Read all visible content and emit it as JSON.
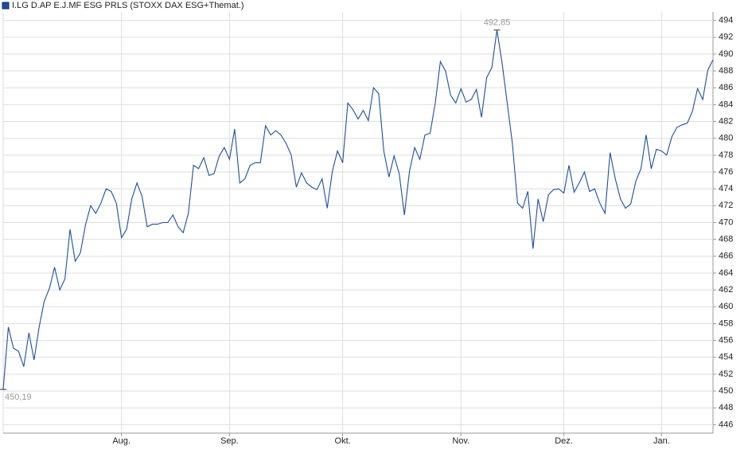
{
  "chart_data": {
    "type": "line",
    "categories": [
      null,
      null,
      null,
      null,
      null,
      null,
      null,
      null,
      null,
      null,
      null,
      null,
      null,
      null,
      null,
      null,
      null,
      null,
      null,
      null,
      null,
      null,
      null,
      "Aug.",
      null,
      null,
      null,
      null,
      null,
      null,
      null,
      null,
      null,
      null,
      null,
      null,
      null,
      null,
      null,
      null,
      null,
      null,
      null,
      null,
      "Sep.",
      null,
      null,
      null,
      null,
      null,
      null,
      null,
      null,
      null,
      null,
      null,
      null,
      null,
      null,
      null,
      null,
      null,
      null,
      null,
      null,
      null,
      "Okt.",
      null,
      null,
      null,
      null,
      null,
      null,
      null,
      null,
      null,
      null,
      null,
      null,
      null,
      null,
      null,
      null,
      null,
      null,
      null,
      null,
      null,
      null,
      "Nov.",
      null,
      null,
      null,
      null,
      null,
      null,
      null,
      null,
      null,
      null,
      null,
      null,
      null,
      null,
      null,
      null,
      null,
      null,
      null,
      "Dez.",
      null,
      null,
      null,
      null,
      null,
      null,
      null,
      null,
      null,
      null,
      null,
      null,
      null,
      null,
      null,
      null,
      null,
      null,
      "Jan.",
      null,
      null,
      null,
      null,
      null,
      null,
      null,
      null,
      null,
      null
    ],
    "series": [
      {
        "name": "I.LG D.AP E.J.MF ESG PRLS (STOXX DAX ESG+Themat.)",
        "color": "#1d4f9e",
        "values": [
          450.19,
          457.6,
          455.1,
          454.7,
          452.9,
          456.9,
          453.7,
          457.6,
          460.7,
          462.2,
          464.7,
          462.0,
          463.3,
          469.2,
          465.4,
          466.4,
          469.7,
          472.0,
          471.1,
          472.3,
          474.0,
          473.7,
          472.3,
          468.2,
          469.2,
          472.8,
          474.7,
          473.1,
          469.5,
          469.8,
          469.8,
          470.0,
          470.0,
          470.9,
          469.5,
          468.8,
          471.1,
          476.8,
          476.4,
          477.7,
          475.6,
          475.8,
          477.9,
          478.9,
          477.5,
          481.1,
          474.7,
          475.2,
          476.8,
          477.1,
          477.1,
          481.5,
          480.4,
          480.9,
          480.4,
          479.4,
          478.0,
          474.2,
          475.9,
          474.7,
          474.2,
          473.9,
          475.2,
          471.7,
          476.1,
          478.5,
          477.1,
          484.2,
          483.4,
          482.3,
          483.3,
          482.1,
          486.0,
          485.3,
          478.5,
          475.4,
          477.9,
          475.8,
          470.9,
          476.1,
          478.9,
          477.5,
          480.4,
          480.6,
          484.2,
          489.1,
          488.0,
          485.1,
          484.2,
          485.9,
          484.3,
          484.6,
          485.8,
          482.5,
          487.2,
          488.4,
          492.85,
          488.9,
          484.2,
          479.4,
          472.3,
          471.7,
          473.7,
          466.9,
          472.8,
          470.1,
          473.3,
          473.9,
          474.0,
          473.5,
          476.8,
          473.6,
          474.7,
          476.0,
          473.7,
          474.0,
          472.3,
          471.1,
          478.3,
          475.2,
          472.8,
          471.7,
          472.2,
          474.9,
          476.4,
          480.4,
          476.4,
          478.7,
          478.5,
          478.0,
          480.2,
          481.3,
          481.6,
          481.8,
          483.2,
          485.9,
          484.6,
          488.1,
          489.3
        ],
        "value_labels": [
          "450,19",
          null,
          null,
          null,
          null,
          null,
          null,
          null,
          null,
          null,
          null,
          null,
          null,
          null,
          null,
          null,
          null,
          null,
          null,
          null,
          null,
          null,
          null,
          null,
          null,
          null,
          null,
          null,
          null,
          null,
          null,
          null,
          null,
          null,
          null,
          null,
          null,
          null,
          null,
          null,
          null,
          null,
          null,
          null,
          null,
          null,
          null,
          null,
          null,
          null,
          null,
          null,
          null,
          null,
          null,
          null,
          null,
          null,
          null,
          null,
          null,
          null,
          null,
          null,
          null,
          null,
          null,
          null,
          null,
          null,
          null,
          null,
          null,
          null,
          null,
          null,
          null,
          null,
          null,
          null,
          null,
          null,
          null,
          null,
          null,
          null,
          null,
          null,
          null,
          null,
          null,
          null,
          null,
          null,
          null,
          null,
          "492,85",
          null,
          null,
          null,
          null,
          null,
          null,
          null,
          null,
          null,
          null,
          null,
          null,
          null,
          null,
          null,
          null,
          null,
          null,
          null,
          null,
          null,
          null,
          null,
          null,
          null,
          null,
          null,
          null,
          null,
          null,
          null,
          null,
          null,
          null,
          null,
          null,
          null,
          null,
          null,
          null,
          null,
          null
        ]
      }
    ],
    "ylim": [
      445,
      495
    ],
    "yticks": [
      446,
      448,
      450,
      452,
      454,
      456,
      458,
      460,
      462,
      464,
      466,
      468,
      470,
      472,
      474,
      476,
      478,
      480,
      482,
      484,
      486,
      488,
      490,
      492,
      494
    ],
    "grid": true,
    "legend": "top-left"
  }
}
